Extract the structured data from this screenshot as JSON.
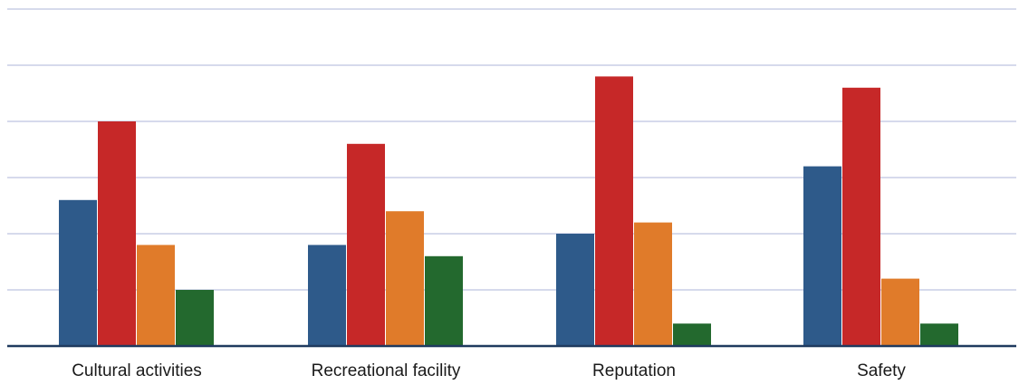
{
  "chart_data": {
    "type": "bar",
    "title": "",
    "xlabel": "",
    "ylabel": "",
    "categories": [
      "Cultural activities",
      "Recreational facility",
      "Reputation",
      "Safety"
    ],
    "series": [
      {
        "color": "#2e5a8a",
        "values": [
          2.6,
          1.8,
          2.0,
          3.2
        ]
      },
      {
        "color": "#c62828",
        "values": [
          4.0,
          3.6,
          4.8,
          4.6
        ]
      },
      {
        "color": "#e07b2a",
        "values": [
          1.8,
          2.4,
          2.2,
          1.2
        ]
      },
      {
        "color": "#23692e",
        "values": [
          1.0,
          1.6,
          0.4,
          0.4
        ]
      }
    ],
    "ylim": [
      0,
      6
    ],
    "grid": true,
    "gridline_count": 6,
    "axis_color": "#1f3a5f",
    "grid_color": "#c9cde6"
  }
}
